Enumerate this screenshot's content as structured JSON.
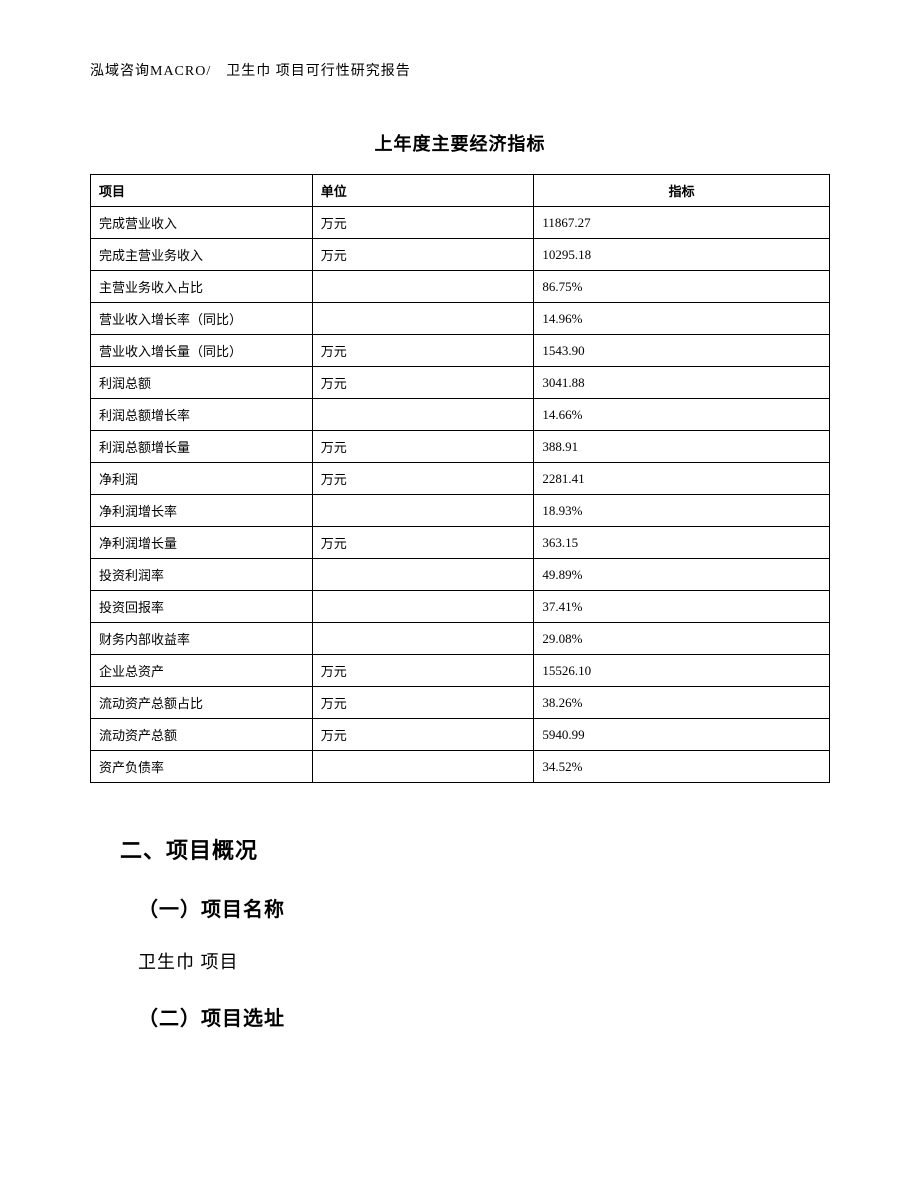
{
  "header": {
    "text": "泓域咨询MACRO/　卫生巾 项目可行性研究报告"
  },
  "table": {
    "title": "上年度主要经济指标",
    "columns": {
      "project": "项目",
      "unit": "单位",
      "indicator": "指标"
    },
    "rows": [
      {
        "project": "完成营业收入",
        "unit": "万元",
        "indicator": "11867.27"
      },
      {
        "project": "完成主营业务收入",
        "unit": "万元",
        "indicator": "10295.18"
      },
      {
        "project": "主营业务收入占比",
        "unit": "",
        "indicator": "86.75%"
      },
      {
        "project": "营业收入增长率（同比）",
        "unit": "",
        "indicator": "14.96%"
      },
      {
        "project": "营业收入增长量（同比）",
        "unit": "万元",
        "indicator": "1543.90"
      },
      {
        "project": "利润总额",
        "unit": "万元",
        "indicator": "3041.88"
      },
      {
        "project": "利润总额增长率",
        "unit": "",
        "indicator": "14.66%"
      },
      {
        "project": "利润总额增长量",
        "unit": "万元",
        "indicator": "388.91"
      },
      {
        "project": "净利润",
        "unit": "万元",
        "indicator": "2281.41"
      },
      {
        "project": "净利润增长率",
        "unit": "",
        "indicator": "18.93%"
      },
      {
        "project": "净利润增长量",
        "unit": "万元",
        "indicator": "363.15"
      },
      {
        "project": "投资利润率",
        "unit": "",
        "indicator": "49.89%"
      },
      {
        "project": "投资回报率",
        "unit": "",
        "indicator": "37.41%"
      },
      {
        "project": "财务内部收益率",
        "unit": "",
        "indicator": "29.08%"
      },
      {
        "project": "企业总资产",
        "unit": "万元",
        "indicator": "15526.10"
      },
      {
        "project": "流动资产总额占比",
        "unit": "万元",
        "indicator": "38.26%"
      },
      {
        "project": "流动资产总额",
        "unit": "万元",
        "indicator": "5940.99"
      },
      {
        "project": "资产负债率",
        "unit": "",
        "indicator": "34.52%"
      }
    ]
  },
  "sections": {
    "heading2": "二、项目概况",
    "sub1": "（一）项目名称",
    "body1": "卫生巾 项目",
    "sub2": "（二）项目选址"
  },
  "style": {
    "page_bg": "#ffffff",
    "text_color": "#000000",
    "border_color": "#000000",
    "header_fontsize": 14,
    "table_title_fontsize": 18,
    "table_cell_fontsize": 13,
    "section_heading_fontsize": 22,
    "sub_heading_fontsize": 20,
    "body_text_fontsize": 18
  }
}
